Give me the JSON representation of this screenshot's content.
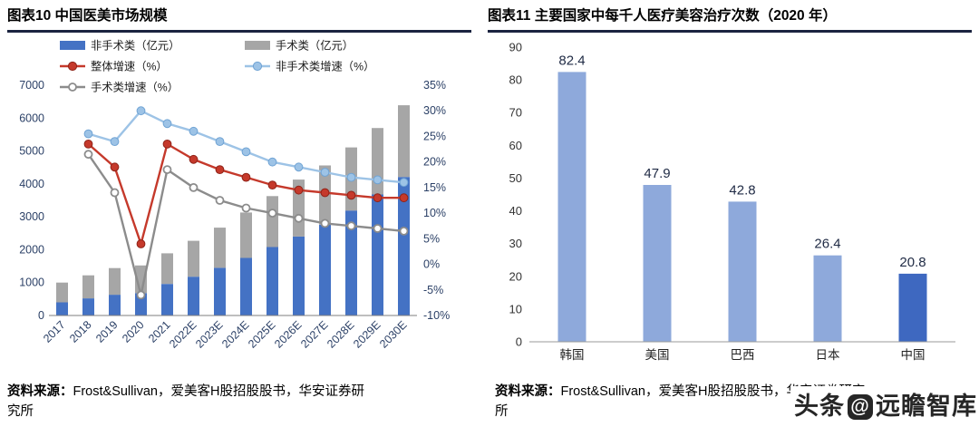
{
  "watermark": {
    "prefix": "头条",
    "at": "@",
    "suffix": "远瞻智库"
  },
  "footer_left": {
    "label": "资料来源：",
    "line1": "Frost&Sullivan，爱美客H股招股股书，华安证券研",
    "line2": "究所"
  },
  "footer_right": {
    "label": "资料来源：",
    "line1": "Frost&Sullivan，爱美客H股招股股书，华安证券研究",
    "line2": "所"
  },
  "chart_data": [
    {
      "type": "bar",
      "subtype": "stacked-bars-with-growth-lines",
      "title": "图表10 中国医美市场规模",
      "legend_position": "top",
      "grid": false,
      "categories": [
        "2017",
        "2018",
        "2019",
        "2020",
        "2021",
        "2022E",
        "2023E",
        "2024E",
        "2025E",
        "2026E",
        "2027E",
        "2028E",
        "2029E",
        "2030E"
      ],
      "bar_series": [
        {
          "name": "非手术类（亿元）",
          "color": "#4472C4",
          "values": [
            400,
            520,
            630,
            680,
            960,
            1180,
            1450,
            1750,
            2080,
            2400,
            2760,
            3190,
            3680,
            4210
          ]
        },
        {
          "name": "手术类（亿元）",
          "color": "#A6A6A6",
          "values": [
            600,
            700,
            810,
            840,
            930,
            1090,
            1220,
            1380,
            1550,
            1730,
            1800,
            1920,
            2020,
            2180
          ]
        }
      ],
      "line_series": [
        {
          "name": "整体增速（%）",
          "color": "#C5392B",
          "edge": "#8f2318",
          "marker": "solid",
          "start_index": 1,
          "values": [
            23.5,
            19,
            4,
            23.5,
            20.5,
            18.5,
            17,
            15.5,
            14.5,
            14,
            13.5,
            13,
            13
          ]
        },
        {
          "name": "非手术类增速（%）",
          "color": "#9DC3E6",
          "edge": "#6FA3D4",
          "marker": "solid",
          "start_index": 1,
          "values": [
            25.5,
            24,
            30,
            27.5,
            26,
            24,
            22,
            20,
            19,
            18,
            17,
            16.5,
            16
          ]
        },
        {
          "name": "手术类增速（%）",
          "color": "#8C8C8C",
          "edge": "#8C8C8C",
          "marker": "open",
          "start_index": 1,
          "values": [
            21.5,
            14,
            -6,
            18.5,
            15,
            12.5,
            11,
            10,
            9,
            8,
            7.5,
            7,
            6.5
          ]
        }
      ],
      "y_left": {
        "min": 0,
        "max": 7000,
        "step": 1000
      },
      "y_right": {
        "min": -10,
        "max": 35,
        "step": 5,
        "suffix": "%"
      }
    },
    {
      "type": "bar",
      "title": "图表11 主要国家中每千人医疗美容治疗次数（2020 年）",
      "grid": false,
      "categories": [
        "韩国",
        "美国",
        "巴西",
        "日本",
        "中国"
      ],
      "values": [
        82.4,
        47.9,
        42.8,
        26.4,
        20.8
      ],
      "data_labels": true,
      "bar_color": "#8EA9DB",
      "highlight_color": "#3E68C0",
      "highlight_index": 4,
      "ylim": [
        0,
        90
      ],
      "ystep": 10
    }
  ]
}
